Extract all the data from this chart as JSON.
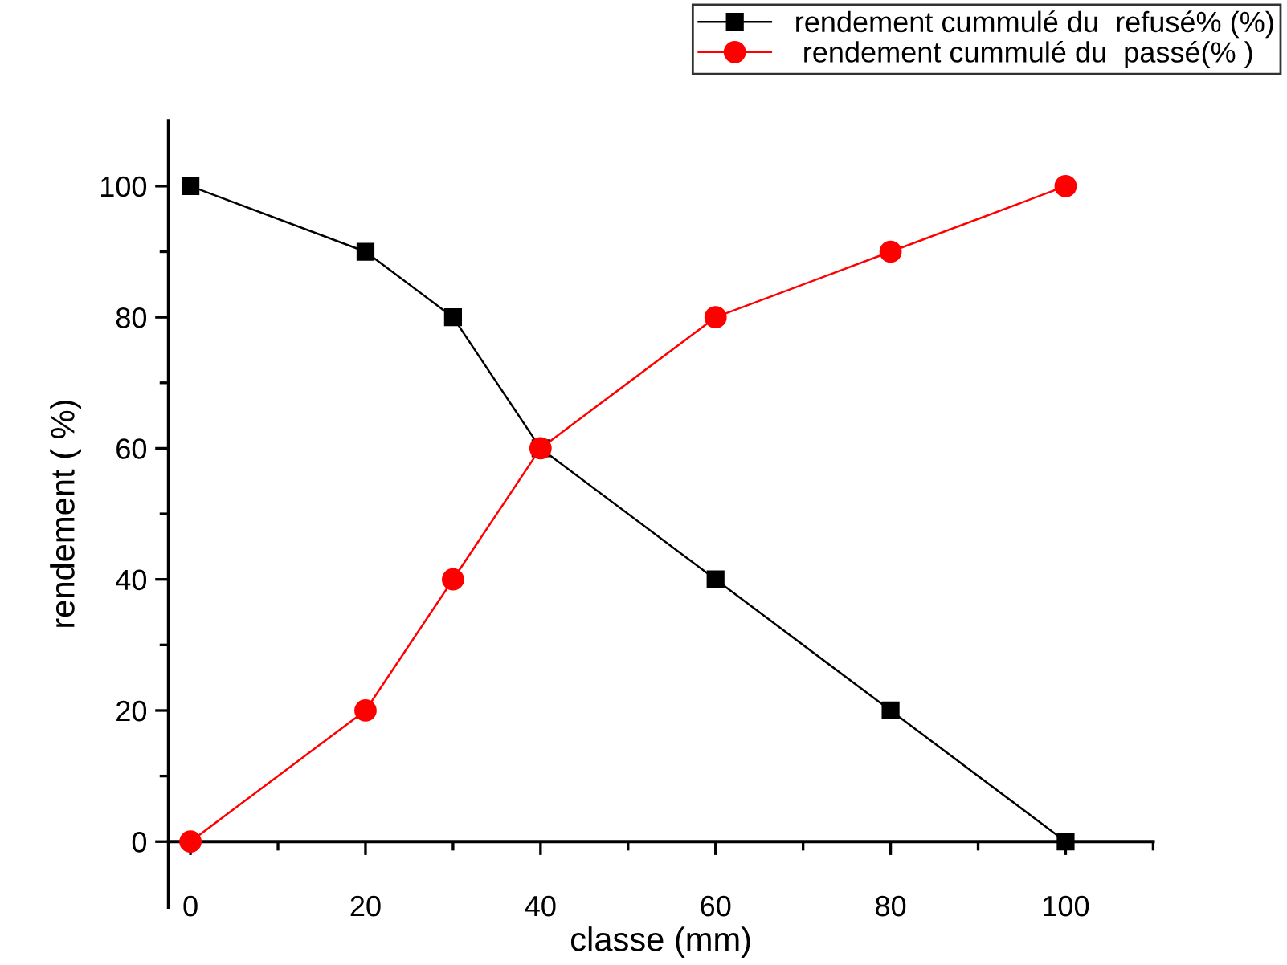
{
  "chart_data": {
    "type": "line",
    "xlabel": "classe (mm)",
    "ylabel": "rendement ( %)",
    "x": [
      0,
      20,
      30,
      40,
      60,
      80,
      100
    ],
    "series": [
      {
        "name": "rendement cummulé du  refusé% (%)",
        "color": "#000000",
        "marker": "square",
        "values": [
          100,
          90,
          80,
          60,
          40,
          20,
          0
        ]
      },
      {
        "name": " rendement cummulé du  passé(% )",
        "color": "#ff0000",
        "marker": "circle",
        "values": [
          0,
          20,
          40,
          60,
          80,
          90,
          100
        ]
      }
    ],
    "xlim": [
      -2.5,
      110
    ],
    "ylim": [
      -10,
      110
    ],
    "xticks": [
      0,
      20,
      40,
      60,
      80,
      100
    ],
    "yticks": [
      0,
      20,
      40,
      60,
      80,
      100
    ],
    "grid": false,
    "legend": "top right",
    "line_style": "solid"
  }
}
